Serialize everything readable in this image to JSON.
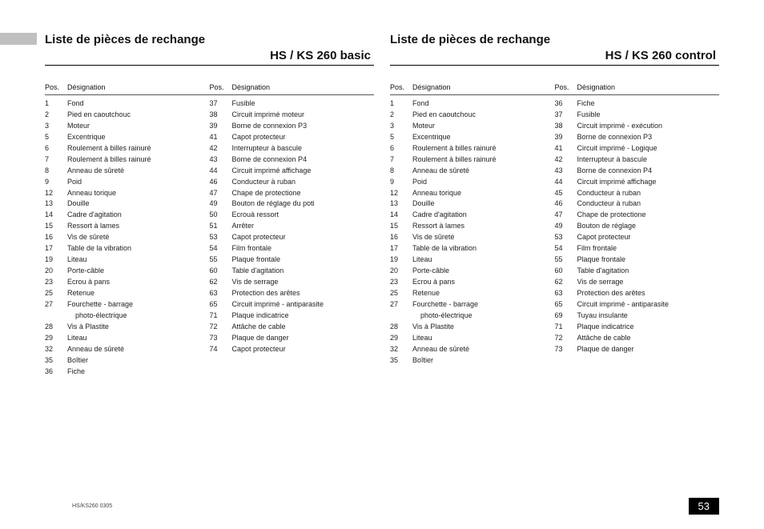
{
  "sections": [
    {
      "title_line1": "Liste de pièces de rechange",
      "title_line2": "HS / KS 260 basic",
      "col_header_pos": "Pos.",
      "col_header_des": "Désignation",
      "left": [
        {
          "p": "1",
          "d": "Fond"
        },
        {
          "p": "2",
          "d": "Pied en caoutchouc"
        },
        {
          "p": "3",
          "d": "Moteur"
        },
        {
          "p": "5",
          "d": "Excentrique"
        },
        {
          "p": "6",
          "d": "Roulement à billes rainuré"
        },
        {
          "p": "7",
          "d": "Roulement à billes rainuré"
        },
        {
          "p": "8",
          "d": "Anneau de sûreté"
        },
        {
          "p": "9",
          "d": "Poid"
        },
        {
          "p": "12",
          "d": "Anneau torique"
        },
        {
          "p": "13",
          "d": "Douille"
        },
        {
          "p": "14",
          "d": "Cadre d'agitation"
        },
        {
          "p": "15",
          "d": "Ressort à lames"
        },
        {
          "p": "16",
          "d": "Vis de sûreté"
        },
        {
          "p": "17",
          "d": "Table de la vibration"
        },
        {
          "p": "19",
          "d": "Liteau"
        },
        {
          "p": "20",
          "d": "Porte-câble"
        },
        {
          "p": "23",
          "d": "Ecrou à pans"
        },
        {
          "p": "25",
          "d": "Retenue"
        },
        {
          "p": "27",
          "d": "Fourchette - barrage"
        },
        {
          "p": "",
          "d": "photo-électrique",
          "indent": true
        },
        {
          "p": "28",
          "d": "Vis à Plastite"
        },
        {
          "p": "29",
          "d": "Liteau"
        },
        {
          "p": "32",
          "d": "Anneau de sûreté"
        },
        {
          "p": "35",
          "d": "Boîtier"
        },
        {
          "p": "36",
          "d": "Fiche"
        }
      ],
      "right": [
        {
          "p": "37",
          "d": "Fusible"
        },
        {
          "p": "38",
          "d": "Circuit imprimé moteur"
        },
        {
          "p": "39",
          "d": "Borne de connexion P3"
        },
        {
          "p": "41",
          "d": "Capot protecteur"
        },
        {
          "p": "42",
          "d": "Interrupteur à bascule"
        },
        {
          "p": "43",
          "d": "Borne de connexion P4"
        },
        {
          "p": "44",
          "d": "Circuit imprimé affichage"
        },
        {
          "p": "46",
          "d": "Conducteur à ruban"
        },
        {
          "p": "47",
          "d": "Chape de protectione"
        },
        {
          "p": "49",
          "d": "Bouton de réglage du poti"
        },
        {
          "p": "50",
          "d": "Ecrouà ressort"
        },
        {
          "p": "51",
          "d": "Arrêter"
        },
        {
          "p": "53",
          "d": "Capot protecteur"
        },
        {
          "p": "54",
          "d": "Film frontale"
        },
        {
          "p": "55",
          "d": "Plaque frontale"
        },
        {
          "p": "60",
          "d": "Table d'agitation"
        },
        {
          "p": "62",
          "d": "Vis de serrage"
        },
        {
          "p": "63",
          "d": "Protection des arêtes"
        },
        {
          "p": "65",
          "d": "Circuit imprimé - antiparasite"
        },
        {
          "p": "71",
          "d": "Plaque indicatrice"
        },
        {
          "p": "72",
          "d": "Attâche de cable"
        },
        {
          "p": "73",
          "d": "Plaque de danger"
        },
        {
          "p": "74",
          "d": "Capot protecteur"
        }
      ]
    },
    {
      "title_line1": "Liste de pièces de rechange",
      "title_line2": "HS / KS 260 control",
      "col_header_pos": "Pos.",
      "col_header_des": "Désignation",
      "left": [
        {
          "p": "1",
          "d": "Fond"
        },
        {
          "p": "2",
          "d": "Pied en caoutchouc"
        },
        {
          "p": "3",
          "d": "Moteur"
        },
        {
          "p": "5",
          "d": "Excentrique"
        },
        {
          "p": "6",
          "d": "Roulement à billes rainuré"
        },
        {
          "p": "7",
          "d": "Roulement à billes rainuré"
        },
        {
          "p": "8",
          "d": "Anneau de sûreté"
        },
        {
          "p": "9",
          "d": "Poid"
        },
        {
          "p": "12",
          "d": "Anneau torique"
        },
        {
          "p": "13",
          "d": "Douille"
        },
        {
          "p": "14",
          "d": "Cadre d'agitation"
        },
        {
          "p": "15",
          "d": "Ressort à lames"
        },
        {
          "p": "16",
          "d": "Vis de sûreté"
        },
        {
          "p": "17",
          "d": "Table de la vibration"
        },
        {
          "p": "19",
          "d": "Liteau"
        },
        {
          "p": "20",
          "d": "Porte-câble"
        },
        {
          "p": "23",
          "d": "Ecrou à pans"
        },
        {
          "p": "25",
          "d": "Retenue"
        },
        {
          "p": "27",
          "d": "Fourchette - barrage"
        },
        {
          "p": "",
          "d": "photo-électrique",
          "indent": true
        },
        {
          "p": "28",
          "d": "Vis à Plastite"
        },
        {
          "p": "29",
          "d": "Liteau"
        },
        {
          "p": "32",
          "d": "Anneau de sûreté"
        },
        {
          "p": "35",
          "d": "Boîtier"
        }
      ],
      "right": [
        {
          "p": "36",
          "d": "Fiche"
        },
        {
          "p": "37",
          "d": "Fusible"
        },
        {
          "p": "38",
          "d": "Circuit imprimé - exécution"
        },
        {
          "p": "39",
          "d": "Borne de connexion P3"
        },
        {
          "p": "41",
          "d": "Circuit imprimé  - Logique"
        },
        {
          "p": "42",
          "d": "Interrupteur à bascule"
        },
        {
          "p": "43",
          "d": "Borne de connexion P4"
        },
        {
          "p": "44",
          "d": "Circuit imprimé affichage"
        },
        {
          "p": "45",
          "d": "Conducteur à ruban"
        },
        {
          "p": "46",
          "d": "Conducteur à ruban"
        },
        {
          "p": "47",
          "d": "Chape de protectione"
        },
        {
          "p": "49",
          "d": "Bouton de réglage"
        },
        {
          "p": "53",
          "d": "Capot protecteur"
        },
        {
          "p": "54",
          "d": "Film frontale"
        },
        {
          "p": "55",
          "d": "Plaque frontale"
        },
        {
          "p": "60",
          "d": "Table d'agitation"
        },
        {
          "p": "62",
          "d": "Vis de serrage"
        },
        {
          "p": "63",
          "d": "Protection des arêtes"
        },
        {
          "p": "65",
          "d": "Circuit imprimé - antiparasite"
        },
        {
          "p": "69",
          "d": "Tuyau insulante"
        },
        {
          "p": "71",
          "d": "Plaque indicatrice"
        },
        {
          "p": "72",
          "d": "Attâche de cable"
        },
        {
          "p": "73",
          "d": "Plaque de danger"
        }
      ]
    }
  ],
  "footer_left": "HS/KS260  0305",
  "page_number": "53"
}
